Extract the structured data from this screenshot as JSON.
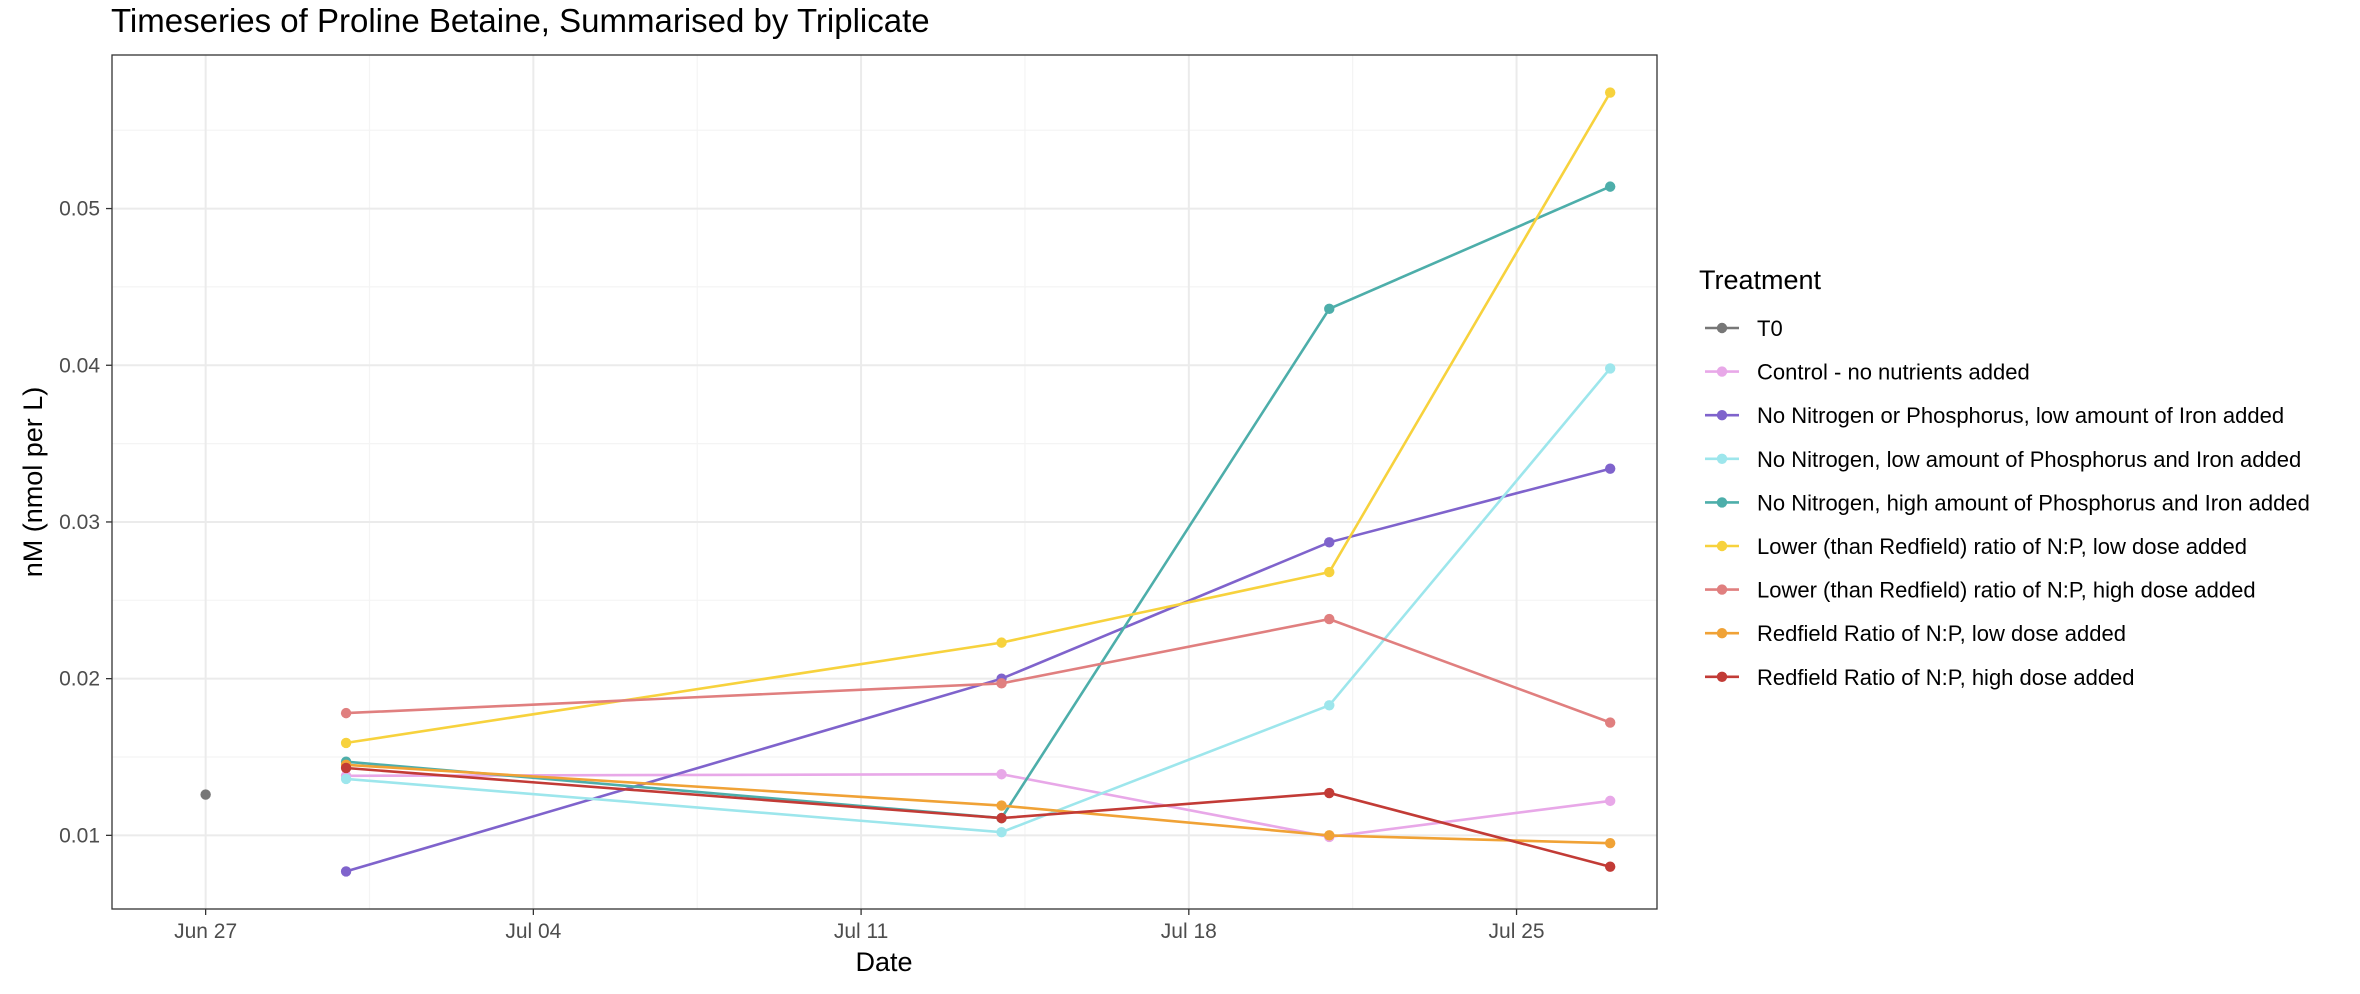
{
  "chart_data": {
    "type": "line",
    "title": "Timeseries of Proline Betaine, Summarised by Triplicate",
    "xlabel": "Date",
    "ylabel": "nM (nmol per L)",
    "x_ticks": [
      "Jun 27",
      "Jul 04",
      "Jul 11",
      "Jul 18",
      "Jul 25"
    ],
    "x_tick_dates": [
      "2019-06-27",
      "2019-07-04",
      "2019-07-11",
      "2019-07-18",
      "2019-07-25"
    ],
    "y_ticks": [
      0.01,
      0.02,
      0.03,
      0.04,
      0.05
    ],
    "y_tick_labels": [
      "0.01",
      "0.02",
      "0.03",
      "0.04",
      "0.05"
    ],
    "xlim": [
      "2019-06-25",
      "2019-07-28"
    ],
    "ylim": [
      0.0053,
      0.0598
    ],
    "grid": true,
    "legend_title": "Treatment",
    "legend_position": "right",
    "series": [
      {
        "name": "T0",
        "color": "#777777",
        "points": [
          [
            "2019-06-27",
            0.0126
          ]
        ]
      },
      {
        "name": "Control - no nutrients added",
        "color": "#E8A8E8",
        "points": [
          [
            "2019-06-30",
            0.0138
          ],
          [
            "2019-07-14",
            0.0139
          ],
          [
            "2019-07-21",
            0.0099
          ],
          [
            "2019-07-27",
            0.0122
          ]
        ]
      },
      {
        "name": "No Nitrogen or Phosphorus, low amount of Iron added",
        "color": "#7F63CC",
        "points": [
          [
            "2019-06-30",
            0.0077
          ],
          [
            "2019-07-14",
            0.02
          ],
          [
            "2019-07-21",
            0.0287
          ],
          [
            "2019-07-27",
            0.0334
          ]
        ]
      },
      {
        "name": "No Nitrogen, low amount of Phosphorus and Iron added",
        "color": "#9DE6EC",
        "points": [
          [
            "2019-06-30",
            0.0136
          ],
          [
            "2019-07-14",
            0.0102
          ],
          [
            "2019-07-21",
            0.0183
          ],
          [
            "2019-07-27",
            0.0398
          ]
        ]
      },
      {
        "name": "No Nitrogen, high amount of Phosphorus and Iron added",
        "color": "#4DAEAA",
        "points": [
          [
            "2019-06-30",
            0.0147
          ],
          [
            "2019-07-14",
            0.0111
          ],
          [
            "2019-07-21",
            0.0436
          ],
          [
            "2019-07-27",
            0.0514
          ]
        ]
      },
      {
        "name": "Lower (than Redfield) ratio of N:P, low dose added",
        "color": "#F7D23D",
        "points": [
          [
            "2019-06-30",
            0.0159
          ],
          [
            "2019-07-14",
            0.0223
          ],
          [
            "2019-07-21",
            0.0268
          ],
          [
            "2019-07-27",
            0.0574
          ]
        ]
      },
      {
        "name": "Lower (than Redfield) ratio of N:P, high dose added",
        "color": "#E07F7F",
        "points": [
          [
            "2019-06-30",
            0.0178
          ],
          [
            "2019-07-14",
            0.0197
          ],
          [
            "2019-07-21",
            0.0238
          ],
          [
            "2019-07-27",
            0.0172
          ]
        ]
      },
      {
        "name": "Redfield Ratio of N:P, low dose added",
        "color": "#F0A236",
        "points": [
          [
            "2019-06-30",
            0.0145
          ],
          [
            "2019-07-14",
            0.0119
          ],
          [
            "2019-07-21",
            0.01
          ],
          [
            "2019-07-27",
            0.0095
          ]
        ]
      },
      {
        "name": "Redfield Ratio of N:P, high dose added",
        "color": "#C23B36",
        "points": [
          [
            "2019-06-30",
            0.0143
          ],
          [
            "2019-07-14",
            0.0111
          ],
          [
            "2019-07-21",
            0.0127
          ],
          [
            "2019-07-27",
            0.008
          ]
        ]
      }
    ]
  }
}
